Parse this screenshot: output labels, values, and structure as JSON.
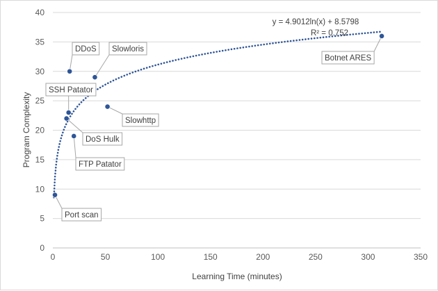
{
  "chart_data": {
    "type": "scatter",
    "title": "",
    "xlabel": "Learning Time (minutes)",
    "ylabel": "Program Complexity",
    "xlim": [
      0,
      350
    ],
    "ylim": [
      0,
      40
    ],
    "x_ticks": [
      0,
      50,
      100,
      150,
      200,
      250,
      300,
      350
    ],
    "y_ticks": [
      0,
      5,
      10,
      15,
      20,
      25,
      30,
      35,
      40
    ],
    "grid": "horizontal",
    "marker_color": "#2e5597",
    "trendline_color": "#2e5597",
    "points": [
      {
        "label": "Port scan",
        "x": 2,
        "y": 9
      },
      {
        "label": "DDoS",
        "x": 16,
        "y": 30
      },
      {
        "label": "Slowloris",
        "x": 40,
        "y": 29
      },
      {
        "label": "SSH Patator",
        "x": 15,
        "y": 23
      },
      {
        "label": "DoS Hulk",
        "x": 13,
        "y": 22
      },
      {
        "label": "Slowhttp",
        "x": 52,
        "y": 24
      },
      {
        "label": "FTP Patator",
        "x": 20,
        "y": 19
      },
      {
        "label": "Botnet ARES",
        "x": 313,
        "y": 36
      }
    ],
    "trendline": {
      "type": "logarithmic",
      "a": 4.9012,
      "b": 8.5798,
      "equation": "y = 4.9012ln(x) + 8.5798",
      "r_squared": "R² = 0.752"
    }
  }
}
